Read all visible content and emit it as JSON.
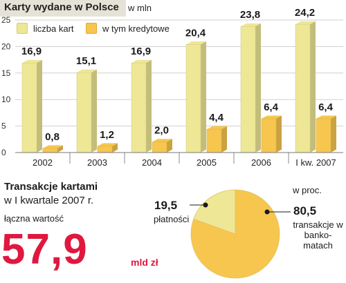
{
  "header": {
    "title": "Karty wydane w Polsce",
    "unit": "w mln"
  },
  "legend": {
    "series_a": "liczba kart",
    "series_b": "w tym kredytowe"
  },
  "chart_data": [
    {
      "type": "bar",
      "title": "Karty wydane w Polsce",
      "ylabel": "w mln",
      "categories": [
        "2002",
        "2003",
        "2004",
        "2005",
        "2006",
        "I kw. 2007"
      ],
      "series": [
        {
          "name": "liczba kart",
          "values": [
            16.9,
            15.1,
            16.9,
            20.4,
            23.8,
            24.2
          ],
          "labels": [
            "16,9",
            "15,1",
            "16,9",
            "20,4",
            "23,8",
            "24,2"
          ]
        },
        {
          "name": "w tym kredytowe",
          "values": [
            0.8,
            1.2,
            2.0,
            4.4,
            6.4,
            6.4
          ],
          "labels": [
            "0,8",
            "1,2",
            "2,0",
            "4,4",
            "6,4",
            "6,4"
          ]
        }
      ],
      "ylim": [
        0,
        25
      ],
      "yticks": [
        "0",
        "5",
        "10",
        "15",
        "20",
        "25"
      ],
      "grid": true,
      "legend": "top-left",
      "colors": {
        "a": "#eee796",
        "b": "#f6c64f"
      }
    },
    {
      "type": "pie",
      "unit": "w proc.",
      "slices": [
        {
          "label": "płatności",
          "value": 19.5,
          "display": "19,5",
          "color": "#eee796"
        },
        {
          "label": "transakcje w bankomatach",
          "value": 80.5,
          "display": "80,5",
          "color": "#f6c64f"
        }
      ]
    }
  ],
  "summary": {
    "title": "Transakcje kartami",
    "subtitle": "w I kwartale 2007 r.",
    "total_label": "łączna wartość",
    "total_value": "57,9",
    "total_unit": "mld zł"
  },
  "pie_labels": {
    "unit": "w proc.",
    "v1": "19,5",
    "l1": "płatności",
    "v2": "80,5",
    "l2": "transakcje w banko-matach"
  }
}
